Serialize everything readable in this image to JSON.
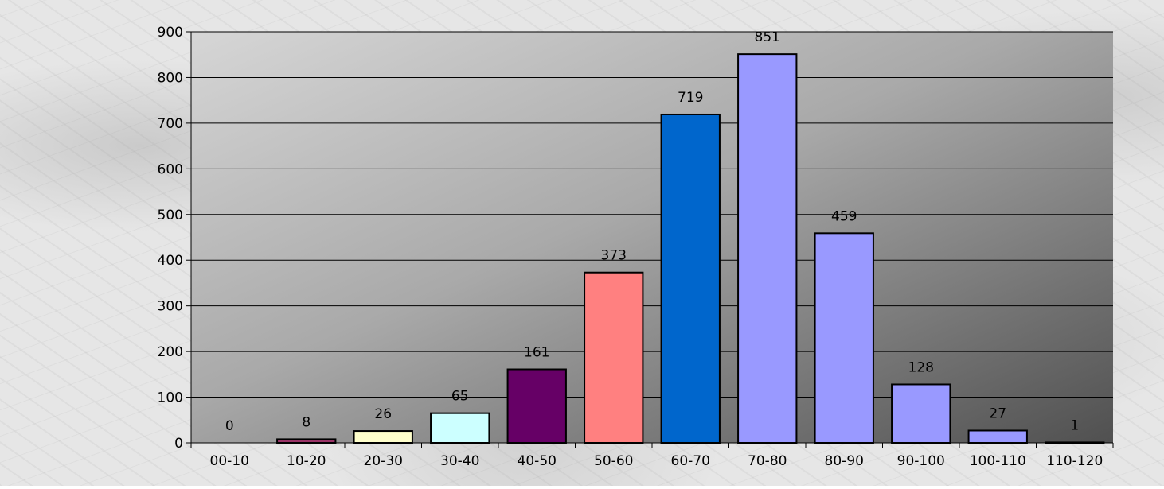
{
  "chart_data": {
    "type": "bar",
    "title": "",
    "xlabel": "",
    "ylabel": "",
    "categories": [
      "00-10",
      "10-20",
      "20-30",
      "30-40",
      "40-50",
      "50-60",
      "60-70",
      "70-80",
      "80-90",
      "90-100",
      "100-110",
      "110-120"
    ],
    "values": [
      0,
      8,
      26,
      65,
      161,
      373,
      719,
      851,
      459,
      128,
      27,
      1
    ],
    "bar_colors": [
      "#9999ff",
      "#993366",
      "#ffffcc",
      "#ccffff",
      "#660066",
      "#ff8080",
      "#0066cc",
      "#9999ff",
      "#9999ff",
      "#9999ff",
      "#9999ff",
      "#9999ff"
    ],
    "ylim": [
      0,
      900
    ],
    "yticks": [
      0,
      100,
      200,
      300,
      400,
      500,
      600,
      700,
      800,
      900
    ],
    "grid": true,
    "legend": "none",
    "data_labels": true,
    "plot_background": "gradient light gray to dark gray"
  }
}
